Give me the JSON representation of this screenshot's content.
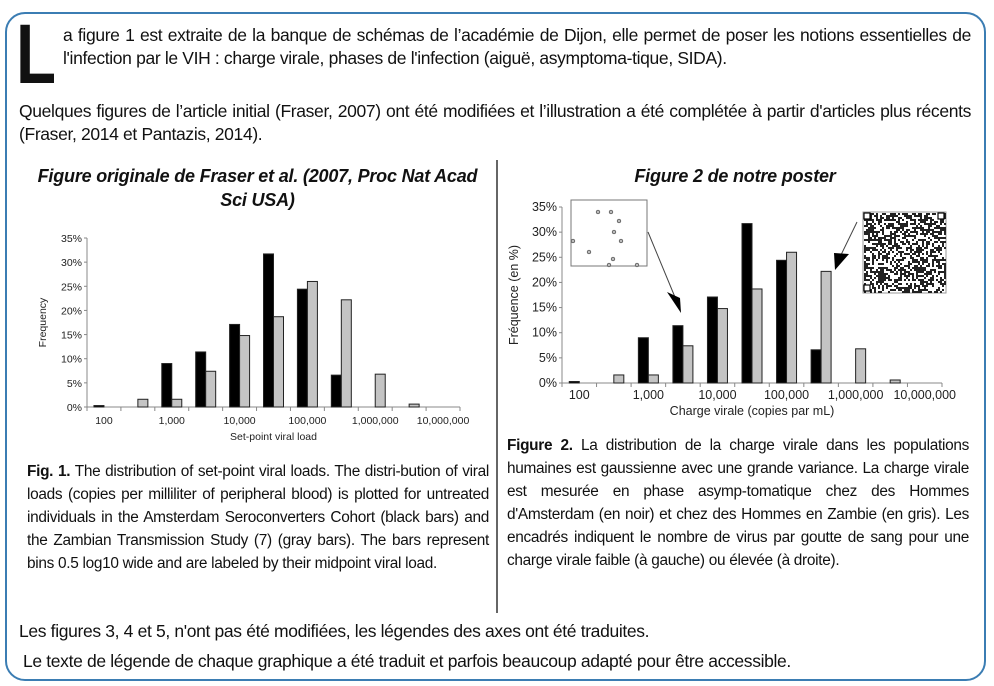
{
  "intro": {
    "drop_cap": "L",
    "paragraph1": "a figure 1 est extraite de la banque de schémas de l’académie de Dijon, elle permet de poser les notions essentielles de l'infection par le VIH : charge virale, phases de l'infection (aiguë, asymptoma-tique, SIDA).",
    "paragraph2": "Quelques figures de l’article initial (Fraser, 2007) ont été modifiées et l’illustration a été complétée à partir d'articles plus récents (Fraser, 2014 et Pantazis, 2014)."
  },
  "left": {
    "title": "Figure originale de Fraser et al. (2007, Proc Nat Acad Sci USA)",
    "caption_label": "Fig. 1.",
    "caption_text": " The distribution of set-point viral loads. The distri-bution of viral loads (copies per milliliter of peripheral blood) is plotted for untreated individuals in the Amsterdam Seroconverters Cohort (black bars) and the Zambian Transmission Study (7) (gray bars). The bars represent bins 0.5 log10 wide and are labeled by their midpoint viral load."
  },
  "right": {
    "title": "Figure 2 de notre poster",
    "caption_label": "Figure 2.",
    "caption_text": " La distribution de la charge virale dans  les populations humaines est gaussienne avec une  grande variance. La charge virale est mesurée en  phase asymp-tomatique chez des Hommes d'Amsterdam (en noir) et chez des Hommes en Zambie (en gris).  Les encadrés indiquent le nombre de virus par goutte de  sang pour une charge virale faible (à gauche) ou élevée  (à droite)."
  },
  "footer": {
    "line1": "Les figures 3, 4 et 5, n'ont pas été modifiées, les légendes des axes ont été traduites.",
    "line2": "Le texte de légende de chaque graphique a été traduit et parfois beaucoup adapté pour être accessible."
  },
  "colors": {
    "frame": "#3b7db3",
    "black_series": "#000000",
    "gray_series": "#c4c4c4"
  },
  "chart_data": [
    {
      "type": "bar",
      "title": "",
      "xlabel": "Set-point viral load",
      "ylabel": "Frequency",
      "ylim": [
        0,
        35
      ],
      "yticks": [
        "0%",
        "5%",
        "10%",
        "15%",
        "20%",
        "25%",
        "30%",
        "35%"
      ],
      "log10_bin_midpoints": [
        2,
        2.5,
        3,
        3.5,
        4,
        4.5,
        5,
        5.5,
        6,
        6.5,
        7
      ],
      "xtick_labels": [
        "100",
        "1,000",
        "10,000",
        "100,000",
        "1,000,000",
        "10,000,000"
      ],
      "series": [
        {
          "name": "Amsterdam Seroconverters Cohort (black bars)",
          "values": [
            0.3,
            0,
            9.0,
            11.4,
            17.1,
            31.7,
            24.4,
            6.6,
            0,
            0,
            0
          ]
        },
        {
          "name": "Zambian Transmission Study (gray bars)",
          "values": [
            0,
            1.6,
            1.6,
            7.4,
            14.8,
            18.7,
            26.0,
            22.2,
            6.8,
            0.6,
            0
          ]
        }
      ]
    },
    {
      "type": "bar",
      "title": "",
      "xlabel": "Charge virale (copies par mL)",
      "ylabel": "Fréquence (en %)",
      "ylim": [
        0,
        35
      ],
      "yticks": [
        "0%",
        "5%",
        "10%",
        "15%",
        "20%",
        "25%",
        "30%",
        "35%"
      ],
      "log10_bin_midpoints": [
        2,
        2.5,
        3,
        3.5,
        4,
        4.5,
        5,
        5.5,
        6,
        6.5,
        7
      ],
      "xtick_labels": [
        "100",
        "1,000",
        "10,000",
        "100,000",
        "1,000,000",
        "10,000,000"
      ],
      "series": [
        {
          "name": "Hommes d'Amsterdam (en noir)",
          "values": [
            0.3,
            0,
            9.0,
            11.4,
            17.1,
            31.7,
            24.4,
            6.6,
            0,
            0,
            0
          ]
        },
        {
          "name": "Hommes en Zambie (en gris)",
          "values": [
            0,
            1.6,
            1.6,
            7.4,
            14.8,
            18.7,
            26.0,
            22.2,
            6.8,
            0.6,
            0
          ]
        }
      ]
    }
  ]
}
